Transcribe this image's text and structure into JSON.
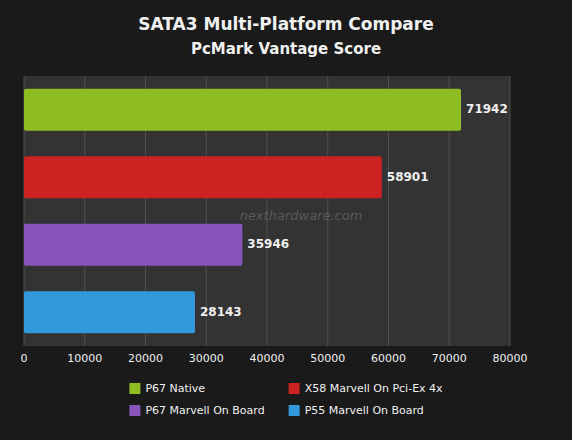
{
  "chart_data": {
    "type": "bar",
    "orientation": "horizontal",
    "title": "SATA3 Multi-Platform Compare",
    "subtitle": "PcMark Vantage Score",
    "categories": [
      "P67 Native",
      "X58 Marvell On Pci-Ex 4x",
      "P67 Marvell On Board",
      "P55 Marvell On Board"
    ],
    "values": [
      71942,
      58901,
      35946,
      28143
    ],
    "colors": [
      "#8fbc22",
      "#cc2222",
      "#8855bb",
      "#3399dd"
    ],
    "xlim": [
      0,
      80000
    ],
    "xticks": [
      0,
      10000,
      20000,
      30000,
      40000,
      50000,
      60000,
      70000,
      80000
    ],
    "grid": true,
    "data_labels": true,
    "tick_labels": "x",
    "legend": "bottom",
    "annotation": "nexthardware.com"
  }
}
